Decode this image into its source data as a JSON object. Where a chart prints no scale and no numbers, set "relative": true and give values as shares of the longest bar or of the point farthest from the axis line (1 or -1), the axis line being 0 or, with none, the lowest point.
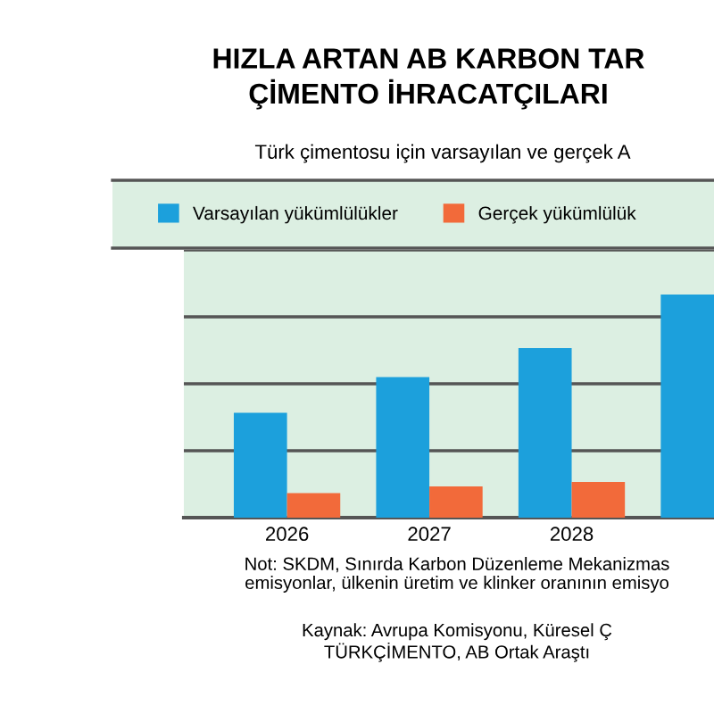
{
  "chart_data": {
    "type": "bar",
    "title": "HIZLA ARTAN AB KARBON TAR\nÇİMENTO İHRACATÇILARI",
    "subtitle": "Türk çimentosu için varsayılan ve gerçek A",
    "categories": [
      "2026",
      "2027",
      "2028",
      null
    ],
    "series": [
      {
        "name": "Varsayılan yükümlülükler",
        "color": "#1ca0dc",
        "values": [
          0.47,
          0.63,
          0.76,
          1.0
        ]
      },
      {
        "name": "Gerçek yükümlülük",
        "color": "#f26a3a",
        "values": [
          0.11,
          0.14,
          0.16,
          null
        ]
      }
    ],
    "relative": true,
    "grid": "y",
    "legend": "top",
    "annotations": [
      "Not: SKDM, Sınırda Karbon Düzenleme Mekanizmas\nemisyonlar, ülkenin üretim ve klinker oranının emisyo",
      "Kaynak: Avrupa Komisyonu, Küresel Ç\nTÜRKÇİMENTO, AB Ortak Araştı"
    ]
  }
}
